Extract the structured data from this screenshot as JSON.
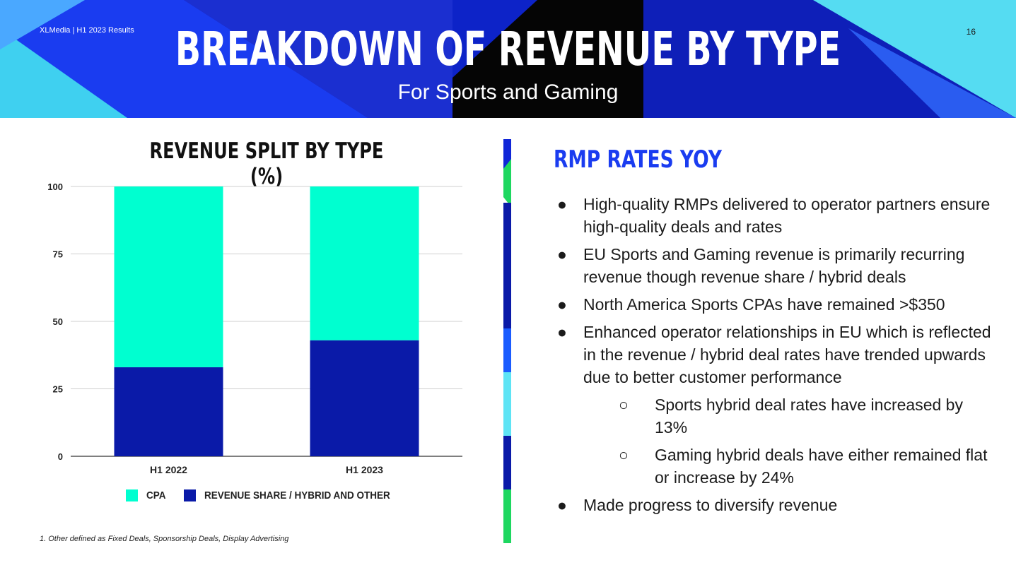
{
  "header": {
    "meta": "XLMedia | H1 2023 Results",
    "page_number": "16",
    "title": "BREAKDOWN OF REVENUE BY TYPE",
    "subtitle": "For Sports and Gaming"
  },
  "colors": {
    "accent_blue": "#1a3cf0",
    "navy": "#0a1aa8",
    "cyan": "#00ffd0",
    "green": "#1ed760",
    "light_cyan": "#5ee4f5"
  },
  "chart_data": {
    "type": "bar",
    "stacked": true,
    "title": "REVENUE SPLIT BY TYPE (%)",
    "categories": [
      "H1 2022",
      "H1 2023"
    ],
    "series": [
      {
        "name": "REVENUE SHARE / HYBRID AND OTHER",
        "values": [
          33,
          43
        ],
        "color": "#0a1aa8"
      },
      {
        "name": "CPA",
        "values": [
          67,
          57
        ],
        "color": "#00ffd0"
      }
    ],
    "ylim": [
      0,
      100
    ],
    "yticks": [
      "0",
      "25",
      "50",
      "75",
      "100"
    ],
    "grid": true,
    "legend_position": "bottom",
    "legend": [
      {
        "label": "CPA",
        "color": "#00ffd0"
      },
      {
        "label": "REVENUE SHARE / HYBRID AND OTHER",
        "color": "#0a1aa8"
      }
    ]
  },
  "footnote": "1. Other defined as  Fixed Deals, Sponsorship Deals, Display Advertising",
  "right_panel": {
    "title": "RMP RATES YOY",
    "bullets": [
      "High-quality RMPs delivered to operator partners ensure high-quality deals and rates",
      "EU Sports and Gaming revenue is primarily recurring revenue though revenue share / hybrid deals",
      "North America Sports CPAs have remained >$350",
      "Enhanced operator relationships in EU which is reflected in the revenue / hybrid deal rates have trended upwards due to better customer performance"
    ],
    "sub_bullets": [
      "Sports hybrid deal rates have increased by 13%",
      "Gaming hybrid deals have either remained flat or increase by 24%"
    ],
    "last_bullet": "Made progress to diversify revenue",
    "bullet_glyph": "●",
    "sub_bullet_glyph": "○"
  }
}
